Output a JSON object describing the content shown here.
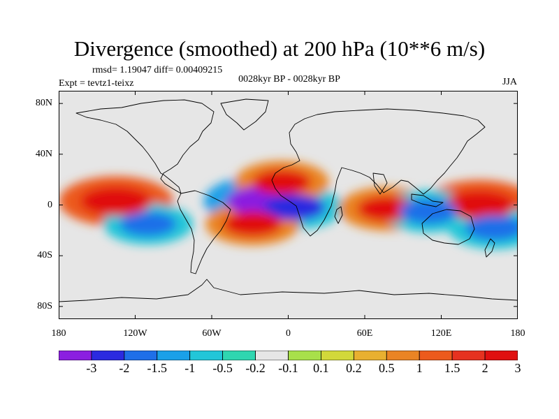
{
  "plot": {
    "title": "Divergence (smoothed) at 200 hPa (10**6 m/s)",
    "stats": "rmsd= 1.19047 diff= 0.00409215",
    "experiment": "Expt = tevtz1-teixz",
    "period": "0028kyr BP - 0028kyr BP",
    "season": "JJA"
  },
  "map": {
    "projection": "cylindrical equidistant",
    "lat_labels": [
      "80N",
      "40N",
      "0",
      "40S",
      "80S"
    ],
    "lon_labels": [
      "180",
      "120W",
      "60W",
      "0",
      "60E",
      "120E",
      "180"
    ],
    "features": [
      {
        "name": "strong convergence",
        "location": "equatorial Atlantic / Gulf of Guinea",
        "lon": -20,
        "lat": 3,
        "value": -3.2
      },
      {
        "name": "convergence",
        "location": "western Africa / equatorial Atlantic",
        "lon": 5,
        "lat": -2,
        "value": -2.2
      },
      {
        "name": "strong divergence",
        "location": "central-eastern tropical Pacific",
        "lon": -135,
        "lat": 3,
        "value": 3.0
      },
      {
        "name": "strong divergence",
        "location": "western Pacific / Maritime Continent",
        "lon": 150,
        "lat": 0,
        "value": 3.0
      },
      {
        "name": "divergence",
        "location": "central Indian Ocean",
        "lon": 78,
        "lat": -3,
        "value": 2.2
      },
      {
        "name": "divergence",
        "location": "West Africa / Sahel",
        "lon": -5,
        "lat": 18,
        "value": 2.0
      },
      {
        "name": "divergence",
        "location": "southern tropical Atlantic",
        "lon": -28,
        "lat": -15,
        "value": 2.0
      },
      {
        "name": "convergence",
        "location": "Indonesia",
        "lon": 110,
        "lat": -5,
        "value": -2.0
      },
      {
        "name": "convergence",
        "location": "southwest Pacific",
        "lon": 162,
        "lat": -18,
        "value": -2.0
      },
      {
        "name": "convergence",
        "location": "eastern Pacific",
        "lon": -110,
        "lat": -15,
        "value": -1.8
      }
    ]
  },
  "colorbar": {
    "colors": [
      "#8b1fe0",
      "#2b2ae0",
      "#1f6fe8",
      "#1aa0e8",
      "#22c6d8",
      "#2fd6b0",
      "#e6e6e6",
      "#a8e04a",
      "#d2d83a",
      "#e8b030",
      "#ea8424",
      "#ec5a1c",
      "#e63220",
      "#e01010"
    ],
    "labels": [
      "-3",
      "-2",
      "-1.5",
      "-1",
      "-0.5",
      "-0.2",
      "-0.1",
      "0.1",
      "0.2",
      "0.5",
      "1",
      "1.5",
      "2",
      "3"
    ],
    "levels": [
      -3,
      -2,
      -1.5,
      -1,
      -0.5,
      -0.2,
      -0.1,
      0.1,
      0.2,
      0.5,
      1,
      1.5,
      2,
      3
    ]
  }
}
